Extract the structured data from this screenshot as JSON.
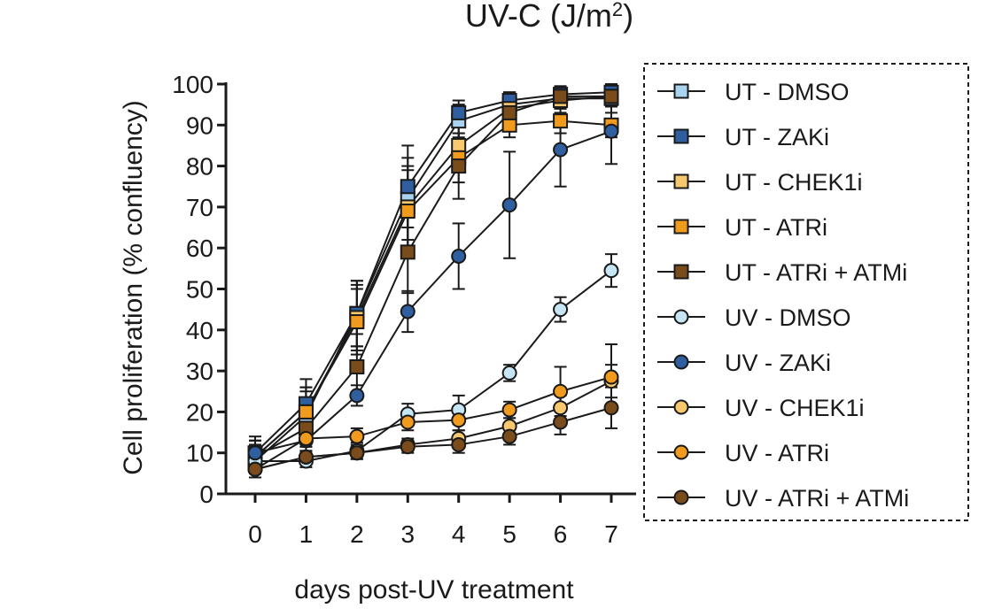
{
  "chart_data": {
    "type": "line",
    "title_main": "UV-C (J/m",
    "title_sup": "2",
    "title_close": ")",
    "xlabel": "days post-UV treatment",
    "ylabel": "Cell proliferation (% confluency)",
    "x": [
      0,
      1,
      2,
      3,
      4,
      5,
      6,
      7
    ],
    "x_tick_labels": [
      "0",
      "1",
      "2",
      "3",
      "4",
      "5",
      "6",
      "7"
    ],
    "y_ticks": [
      0,
      10,
      20,
      30,
      40,
      50,
      60,
      70,
      80,
      90,
      100
    ],
    "y_tick_labels": [
      "0",
      "10",
      "20",
      "30",
      "40",
      "50",
      "60",
      "70",
      "80",
      "90",
      "100"
    ],
    "xlim": [
      0,
      7
    ],
    "ylim": [
      0,
      100
    ],
    "legend_position": "right",
    "series": [
      {
        "name": "UT - DMSO",
        "marker": "square",
        "color": "#a9d3ee",
        "values": [
          8,
          19,
          44,
          72,
          91,
          95,
          96.5,
          96.5
        ],
        "errors": [
          4,
          6,
          8,
          10,
          4,
          3,
          2,
          2
        ]
      },
      {
        "name": "UT - ZAKi",
        "marker": "square",
        "color": "#2f5f9e",
        "values": [
          10,
          22,
          44,
          75,
          93,
          96,
          97.5,
          98
        ],
        "errors": [
          4,
          6,
          8,
          10,
          3,
          2,
          2,
          2
        ]
      },
      {
        "name": "UT - CHEK1i",
        "marker": "square",
        "color": "#f7c86e",
        "values": [
          9,
          20,
          43,
          70,
          85,
          94,
          96,
          97
        ],
        "errors": [
          4,
          6,
          8,
          10,
          5,
          3,
          2,
          2
        ]
      },
      {
        "name": "UT - ATRi",
        "marker": "square",
        "color": "#f09a1e",
        "values": [
          9,
          20,
          42,
          69,
          82,
          90,
          91,
          90
        ],
        "errors": [
          4,
          6,
          8,
          10,
          6,
          3,
          3,
          3
        ]
      },
      {
        "name": "UT - ATRi + ATMi",
        "marker": "square",
        "color": "#7a4c1c",
        "values": [
          9,
          16,
          31,
          59,
          80,
          93,
          97,
          97
        ],
        "errors": [
          4,
          6,
          8,
          10,
          8,
          3,
          2,
          2
        ]
      },
      {
        "name": "UV - DMSO",
        "marker": "circle",
        "color": "#c6e6f5",
        "values": [
          8,
          8,
          10.5,
          19.5,
          20.5,
          29.5,
          45,
          54.5
        ],
        "errors": [
          1,
          1.5,
          2,
          2.5,
          3.5,
          2,
          3,
          4
        ]
      },
      {
        "name": "UV - ZAKi",
        "marker": "circle",
        "color": "#2f5f9e",
        "values": [
          10,
          13,
          24,
          44.5,
          58,
          70.5,
          84,
          88.5
        ],
        "errors": [
          1,
          1.5,
          2.5,
          5,
          8,
          13,
          9,
          8
        ]
      },
      {
        "name": "UV - CHEK1i",
        "marker": "circle",
        "color": "#f7c86e",
        "values": [
          6,
          9,
          10,
          12,
          13.5,
          16.5,
          21,
          27.5
        ],
        "errors": [
          1,
          1.5,
          1.5,
          1.5,
          2,
          2,
          3,
          4
        ]
      },
      {
        "name": "UV - ATRi",
        "marker": "circle",
        "color": "#f09a1e",
        "values": [
          6,
          13.5,
          14,
          17.5,
          18,
          20.5,
          25,
          28.5
        ],
        "errors": [
          1,
          2,
          2,
          2,
          2.5,
          2,
          6,
          8
        ]
      },
      {
        "name": "UV - ATRi + ATMi",
        "marker": "circle",
        "color": "#7a4c1c",
        "values": [
          6,
          9,
          10,
          11.5,
          12,
          14,
          17.5,
          21
        ],
        "errors": [
          1,
          1.5,
          1.5,
          1.5,
          2,
          2,
          3,
          5
        ]
      }
    ]
  }
}
